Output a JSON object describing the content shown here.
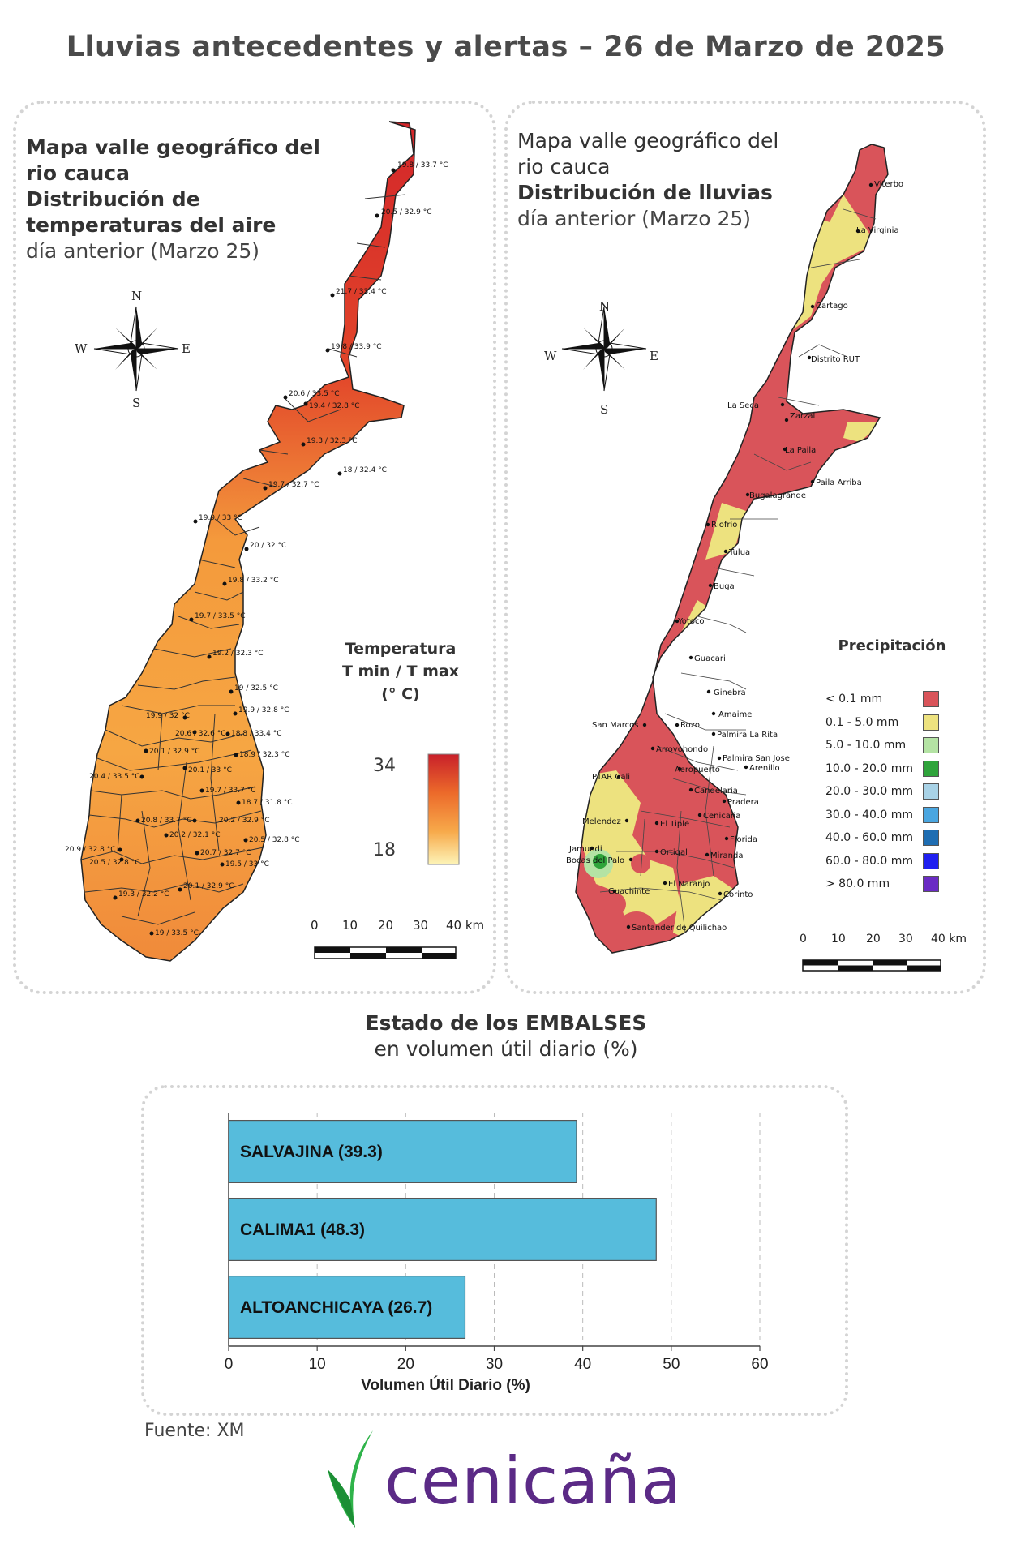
{
  "title": "Lluvias antecedentes y alertas – 26 de Marzo de 2025",
  "temperature_map": {
    "title_lines": [
      "Mapa valle geográfico del",
      "rio cauca",
      "Distribución de",
      "temperaturas del aire"
    ],
    "subtitle": "día anterior (Marzo 25)",
    "legend_title_lines": [
      "Temperatura",
      "T min / T max",
      "(° C)"
    ],
    "legend_max": "34",
    "legend_min": "18",
    "scale_labels": [
      "0",
      "10",
      "20",
      "30",
      "40 km"
    ],
    "compass": {
      "n": "N",
      "s": "S",
      "e": "E",
      "w": "W"
    },
    "stations": [
      "19.8 / 33.7 °C",
      "20.5 / 32.9 °C",
      "21.7 / 33.4 °C",
      "19.8 / 33.9 °C",
      "20.6 / 33.5 °C",
      "19.4 / 32.8 °C",
      "19.3 / 32.3 °C",
      "18 / 32.4 °C",
      "19.7 / 32.7 °C",
      "19.9 / 33 °C",
      "20 / 32 °C",
      "19.8 / 33.2 °C",
      "19.7 / 33.5 °C",
      "19.2 / 32.3 °C",
      "19 / 32.5 °C",
      "19.9 / 32 °C",
      "19.9 / 32.8 °C",
      "20.6 / 32.6 °C",
      "18.8 / 33.4 °C",
      "20.1 / 32.9 °C",
      "18.9 / 32.3 °C",
      "20.4 / 33.5 °C",
      "20.1 / 33 °C",
      "19.7 / 33.7 °C",
      "18.7 / 31.8 °C",
      "20.8 / 33.7 °C",
      "20.2 / 32.9 °C",
      "20.2 / 32.1 °C",
      "20.5 / 32.8 °C",
      "20.9 / 32.8 °C",
      "20.7 / 32.7 °C",
      "20.5 / 32.8 °C",
      "19.5 / 33 °C",
      "19.3 / 32.2 °C",
      "20.1 / 32.9 °C",
      "19 / 33.5 °C"
    ]
  },
  "rain_map": {
    "title_lines": [
      "Mapa valle geográfico del",
      "rio cauca"
    ],
    "title_bold": "Distribución de lluvias",
    "subtitle": "día anterior (Marzo 25)",
    "legend_title": "Precipitación",
    "legend": [
      {
        "label": "< 0.1 mm",
        "color": "#d9545a"
      },
      {
        "label": "0.1 - 5.0 mm",
        "color": "#ede27f"
      },
      {
        "label": "5.0 - 10.0 mm",
        "color": "#b4e3a4"
      },
      {
        "label": "10.0 - 20.0 mm",
        "color": "#2fa43b"
      },
      {
        "label": "20.0 - 30.0 mm",
        "color": "#a8d2e6"
      },
      {
        "label": "30.0 - 40.0 mm",
        "color": "#4aa6e0"
      },
      {
        "label": "40.0 - 60.0 mm",
        "color": "#1e6db2"
      },
      {
        "label": "60.0 - 80.0 mm",
        "color": "#1f1ff0"
      },
      {
        "label": "> 80.0 mm",
        "color": "#6a2bc4"
      }
    ],
    "scale_labels": [
      "0",
      "10",
      "20",
      "30",
      "40 km"
    ],
    "compass": {
      "n": "N",
      "s": "S",
      "e": "E",
      "w": "W"
    },
    "places": [
      "Viterbo",
      "La Virginia",
      "Cartago",
      "Distrito RUT",
      "La Seca",
      "Zarzal",
      "La Paila",
      "Paila Arriba",
      "Bugalagrande",
      "Riofrio",
      "Tulua",
      "Buga",
      "Yotoco",
      "Guacari",
      "Ginebra",
      "Amaime",
      "San Marcos",
      "Rozo",
      "Palmira La Rita",
      "Arroyohondo",
      "Palmira San Jose",
      "Aeropuerto",
      "Arenillo",
      "PTAR Cali",
      "Candelaria",
      "Pradera",
      "Cenicaña",
      "Melendez",
      "El Tiple",
      "Florida",
      "Jamundi",
      "Bocas del Palo",
      "Ortigal",
      "Miranda",
      "Guachinte",
      "El Naranjo",
      "Corinto",
      "Santander de Quilichao"
    ]
  },
  "reservoirs": {
    "title": "Estado de los EMBALSES",
    "subtitle": "en volumen útil diario (%)",
    "source": "Fuente: XM"
  },
  "chart_data": {
    "type": "bar",
    "orientation": "horizontal",
    "categories": [
      "SALVAJINA (39.3)",
      "CALIMA1 (48.3)",
      "ALTOANCHICAYA (26.7)"
    ],
    "values": [
      39.3,
      48.3,
      26.7
    ],
    "xlabel": "Volumen Útil Diario (%)",
    "xlim": [
      0,
      60
    ],
    "xticks": [
      0,
      10,
      20,
      30,
      40,
      50,
      60
    ],
    "bar_color": "#56bcdc",
    "grid": "vertical dashed"
  },
  "logo": {
    "text": "cenicaña",
    "primary_color": "#5b2a86",
    "accent_color": "#2fb34a"
  }
}
